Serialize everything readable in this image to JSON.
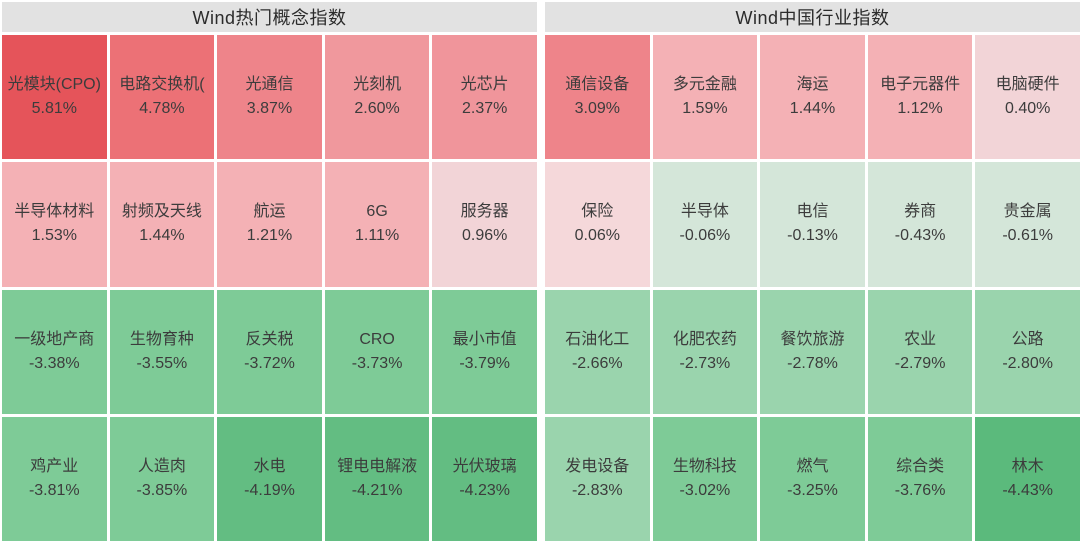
{
  "panel": {
    "background": "#ffffff",
    "header_background": "#e2e2e2",
    "text_color": "#3c3c3c"
  },
  "sections": [
    {
      "title": "Wind热门概念指数",
      "cells": [
        {
          "name": "光模块(CPO)",
          "change": "5.81%",
          "color": "#e5545a"
        },
        {
          "name": "电路交换机(",
          "change": "4.78%",
          "color": "#ec7176"
        },
        {
          "name": "光通信",
          "change": "3.87%",
          "color": "#ee848a"
        },
        {
          "name": "光刻机",
          "change": "2.60%",
          "color": "#f0989d"
        },
        {
          "name": "光芯片",
          "change": "2.37%",
          "color": "#f0959b"
        },
        {
          "name": "半导体材料",
          "change": "1.53%",
          "color": "#f4b1b5"
        },
        {
          "name": "射频及天线",
          "change": "1.44%",
          "color": "#f4b1b5"
        },
        {
          "name": "航运",
          "change": "1.21%",
          "color": "#f4b1b5"
        },
        {
          "name": "6G",
          "change": "1.11%",
          "color": "#f4b1b5"
        },
        {
          "name": "服务器",
          "change": "0.96%",
          "color": "#f2d4d7"
        },
        {
          "name": "一级地产商",
          "change": "-3.38%",
          "color": "#7ecb97"
        },
        {
          "name": "生物育种",
          "change": "-3.55%",
          "color": "#7ecb97"
        },
        {
          "name": "反关税",
          "change": "-3.72%",
          "color": "#7ecb97"
        },
        {
          "name": "CRO",
          "change": "-3.73%",
          "color": "#7ecb97"
        },
        {
          "name": "最小市值",
          "change": "-3.79%",
          "color": "#7ecb97"
        },
        {
          "name": "鸡产业",
          "change": "-3.81%",
          "color": "#7ecb97"
        },
        {
          "name": "人造肉",
          "change": "-3.85%",
          "color": "#7ecb97"
        },
        {
          "name": "水电",
          "change": "-4.19%",
          "color": "#63bd82"
        },
        {
          "name": "锂电电解液",
          "change": "-4.21%",
          "color": "#63bd82"
        },
        {
          "name": "光伏玻璃",
          "change": "-4.23%",
          "color": "#63bd82"
        }
      ]
    },
    {
      "title": "Wind中国行业指数",
      "cells": [
        {
          "name": "通信设备",
          "change": "3.09%",
          "color": "#ee848a"
        },
        {
          "name": "多元金融",
          "change": "1.59%",
          "color": "#f4b1b5"
        },
        {
          "name": "海运",
          "change": "1.44%",
          "color": "#f4b1b5"
        },
        {
          "name": "电子元器件",
          "change": "1.12%",
          "color": "#f4b1b5"
        },
        {
          "name": "电脑硬件",
          "change": "0.40%",
          "color": "#f2d4d7"
        },
        {
          "name": "保险",
          "change": "0.06%",
          "color": "#f5d8da"
        },
        {
          "name": "半导体",
          "change": "-0.06%",
          "color": "#d4e6d9"
        },
        {
          "name": "电信",
          "change": "-0.13%",
          "color": "#d4e6d9"
        },
        {
          "name": "券商",
          "change": "-0.43%",
          "color": "#d4e6d9"
        },
        {
          "name": "贵金属",
          "change": "-0.61%",
          "color": "#d4e6d9"
        },
        {
          "name": "石油化工",
          "change": "-2.66%",
          "color": "#9ad4ad"
        },
        {
          "name": "化肥农药",
          "change": "-2.73%",
          "color": "#9ad4ad"
        },
        {
          "name": "餐饮旅游",
          "change": "-2.78%",
          "color": "#9ad4ad"
        },
        {
          "name": "农业",
          "change": "-2.79%",
          "color": "#9ad4ad"
        },
        {
          "name": "公路",
          "change": "-2.80%",
          "color": "#9ad4ad"
        },
        {
          "name": "发电设备",
          "change": "-2.83%",
          "color": "#9ad4ad"
        },
        {
          "name": "生物科技",
          "change": "-3.02%",
          "color": "#7ecb97"
        },
        {
          "name": "燃气",
          "change": "-3.25%",
          "color": "#7ecb97"
        },
        {
          "name": "综合类",
          "change": "-3.76%",
          "color": "#7ecb97"
        },
        {
          "name": "林木",
          "change": "-4.43%",
          "color": "#5bba7c"
        }
      ]
    }
  ],
  "chart_data": [
    {
      "type": "heatmap",
      "title": "Wind热门概念指数",
      "unit": "% daily change",
      "layout": {
        "columns": 5,
        "rows": 4,
        "order": "row-major, sorted descending"
      },
      "categories": [
        "光模块(CPO)",
        "电路交换机(",
        "光通信",
        "光刻机",
        "光芯片",
        "半导体材料",
        "射频及天线",
        "航运",
        "6G",
        "服务器",
        "一级地产商",
        "生物育种",
        "反关税",
        "CRO",
        "最小市值",
        "鸡产业",
        "人造肉",
        "水电",
        "锂电电解液",
        "光伏玻璃"
      ],
      "values": [
        5.81,
        4.78,
        3.87,
        2.6,
        2.37,
        1.53,
        1.44,
        1.21,
        1.11,
        0.96,
        -3.38,
        -3.55,
        -3.72,
        -3.73,
        -3.79,
        -3.81,
        -3.85,
        -4.19,
        -4.21,
        -4.23
      ],
      "color_scale": {
        "positive": "red shades (deeper = larger gain)",
        "negative": "green shades (deeper = larger loss)"
      }
    },
    {
      "type": "heatmap",
      "title": "Wind中国行业指数",
      "unit": "% daily change",
      "layout": {
        "columns": 5,
        "rows": 4,
        "order": "row-major, sorted descending"
      },
      "categories": [
        "通信设备",
        "多元金融",
        "海运",
        "电子元器件",
        "电脑硬件",
        "保险",
        "半导体",
        "电信",
        "券商",
        "贵金属",
        "石油化工",
        "化肥农药",
        "餐饮旅游",
        "农业",
        "公路",
        "发电设备",
        "生物科技",
        "燃气",
        "综合类",
        "林木"
      ],
      "values": [
        3.09,
        1.59,
        1.44,
        1.12,
        0.4,
        0.06,
        -0.06,
        -0.13,
        -0.43,
        -0.61,
        -2.66,
        -2.73,
        -2.78,
        -2.79,
        -2.8,
        -2.83,
        -3.02,
        -3.25,
        -3.76,
        -4.43
      ],
      "color_scale": {
        "positive": "red shades (deeper = larger gain)",
        "negative": "green shades (deeper = larger loss)"
      }
    }
  ]
}
